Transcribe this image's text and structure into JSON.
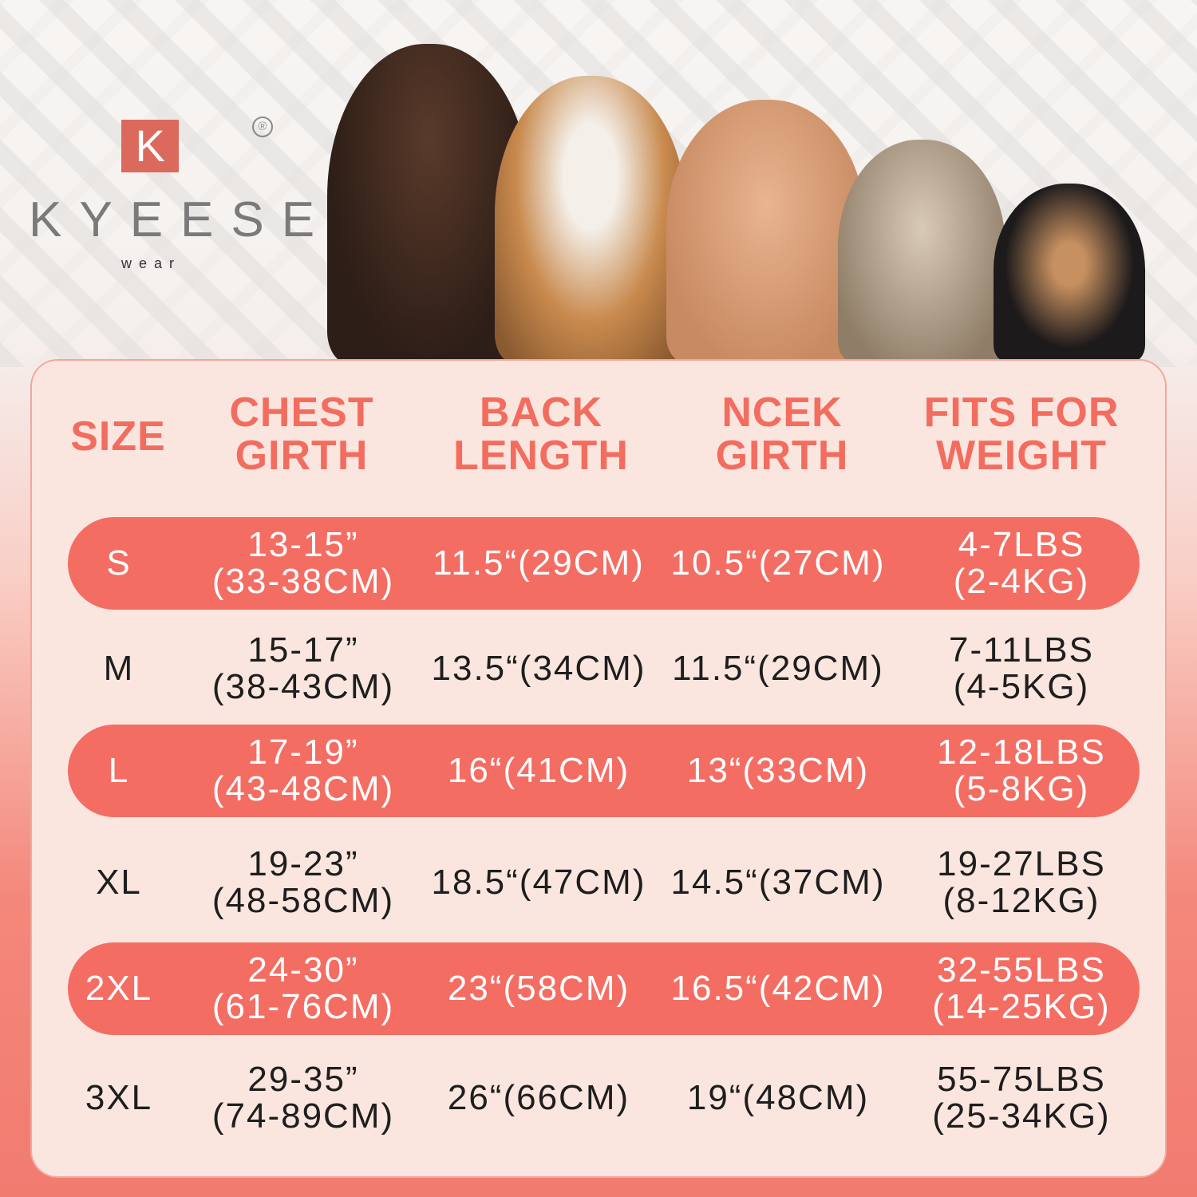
{
  "brand": {
    "logo_letter": "K",
    "name": "KYEESE",
    "sub": "wear",
    "registered": "®"
  },
  "colors": {
    "accent": "#f26d5f",
    "stripe": "#f46d63",
    "card": "#fbe6df"
  },
  "headers": [
    {
      "line1": "SIZE",
      "line2": ""
    },
    {
      "line1": "CHEST",
      "line2": "GIRTH"
    },
    {
      "line1": "BACK",
      "line2": "LENGTH"
    },
    {
      "line1": "NCEK",
      "line2": "GIRTH"
    },
    {
      "line1": "FITS FOR",
      "line2": "WEIGHT"
    }
  ],
  "rows": [
    {
      "size": "S",
      "chest1": "13-15”",
      "chest2": "(33-38CM)",
      "back": "11.5“(29CM)",
      "neck": "10.5“(27CM)",
      "w1": "4-7LBS",
      "w2": "(2-4KG)"
    },
    {
      "size": "M",
      "chest1": "15-17”",
      "chest2": "(38-43CM)",
      "back": "13.5“(34CM)",
      "neck": "11.5“(29CM)",
      "w1": "7-11LBS",
      "w2": "(4-5KG)"
    },
    {
      "size": "L",
      "chest1": "17-19”",
      "chest2": "(43-48CM)",
      "back": "16“(41CM)",
      "neck": "13“(33CM)",
      "w1": "12-18LBS",
      "w2": "(5-8KG)"
    },
    {
      "size": "XL",
      "chest1": "19-23”",
      "chest2": "(48-58CM)",
      "back": "18.5“(47CM)",
      "neck": "14.5“(37CM)",
      "w1": "19-27LBS",
      "w2": "(8-12KG)"
    },
    {
      "size": "2XL",
      "chest1": "24-30”",
      "chest2": "(61-76CM)",
      "back": "23“(58CM)",
      "neck": "16.5“(42CM)",
      "w1": "32-55LBS",
      "w2": "(14-25KG)"
    },
    {
      "size": "3XL",
      "chest1": "29-35”",
      "chest2": "(74-89CM)",
      "back": "26“(66CM)",
      "neck": "19“(48CM)",
      "w1": "55-75LBS",
      "w2": "(25-34KG)"
    }
  ]
}
